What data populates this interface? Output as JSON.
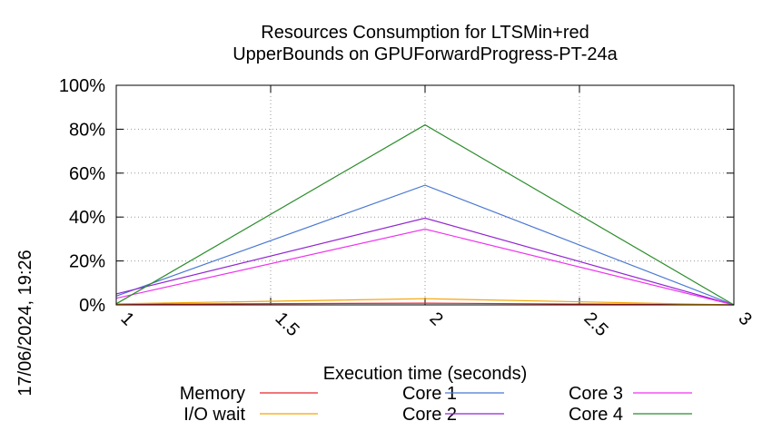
{
  "chart_data": {
    "type": "line",
    "title": "Resources Consumption for LTSMin+red",
    "subtitle": "UpperBounds on GPUForwardProgress-PT-24a",
    "xlabel": "Execution time (seconds)",
    "ylabel": "",
    "timestamp": "17/06/2024, 19:26",
    "xlim": [
      1,
      3
    ],
    "ylim": [
      0,
      100
    ],
    "x_ticks": [
      "1",
      "1.5",
      "2",
      "2.5",
      "3"
    ],
    "y_ticks": [
      "0%",
      "20%",
      "40%",
      "60%",
      "80%",
      "100%"
    ],
    "grid": true,
    "legend_position": "bottom",
    "series": [
      {
        "name": "Memory",
        "color": "#e8262b",
        "x": [
          1,
          2,
          3
        ],
        "y": [
          0.3,
          0.8,
          0
        ]
      },
      {
        "name": "I/O wait",
        "color": "#f5a500",
        "x": [
          1,
          2,
          3
        ],
        "y": [
          0.5,
          2.8,
          0
        ]
      },
      {
        "name": "Core 1",
        "color": "#4877d2",
        "x": [
          1,
          2,
          3
        ],
        "y": [
          4,
          54.5,
          0
        ]
      },
      {
        "name": "Core 2",
        "color": "#9325d1",
        "x": [
          1,
          2,
          3
        ],
        "y": [
          5,
          39.5,
          0
        ]
      },
      {
        "name": "Core 3",
        "color": "#ef33ef",
        "x": [
          1,
          2,
          3
        ],
        "y": [
          3,
          34.5,
          0
        ]
      },
      {
        "name": "Core 4",
        "color": "#2a8c2a",
        "x": [
          1,
          2,
          3
        ],
        "y": [
          0.5,
          82,
          0
        ]
      }
    ]
  }
}
